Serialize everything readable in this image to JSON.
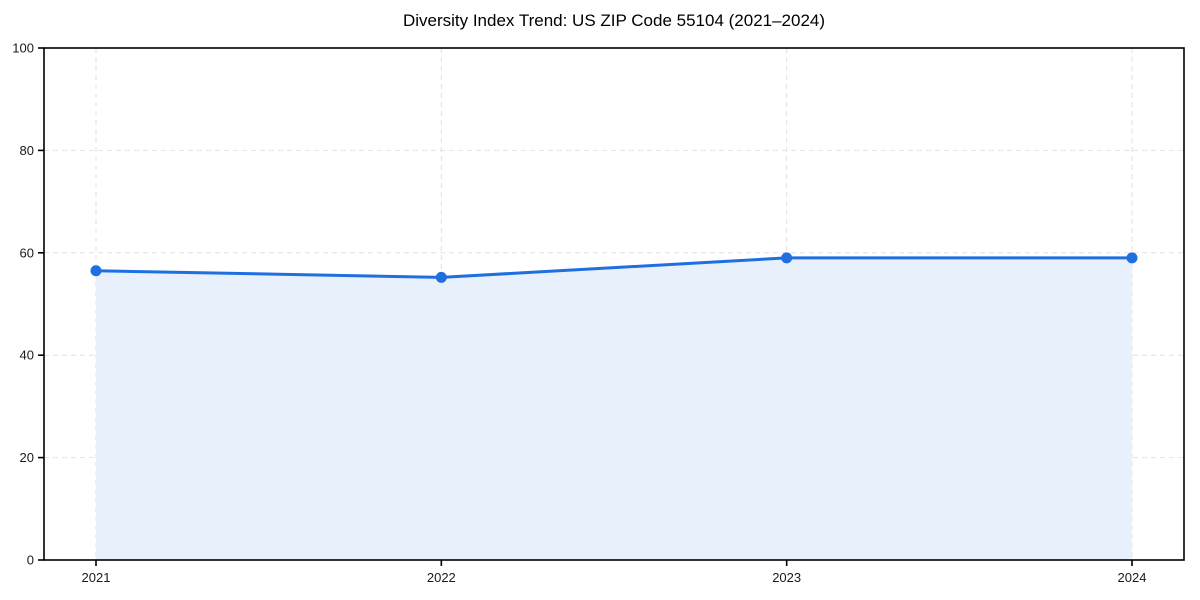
{
  "chart_data": {
    "type": "area",
    "title": "Diversity Index Trend: US ZIP Code 55104 (2021–2024)",
    "x": [
      2021,
      2022,
      2023,
      2024
    ],
    "xticks": [
      "2021",
      "2022",
      "2023",
      "2024"
    ],
    "series": [
      {
        "name": "Diversity Index",
        "values": [
          56.5,
          55.2,
          59.0,
          59.0
        ]
      }
    ],
    "xlabel": "",
    "ylabel": "",
    "ylim": [
      0,
      100
    ],
    "yticks": [
      0,
      20,
      40,
      60,
      80,
      100
    ],
    "grid": true,
    "grid_style": "dashed",
    "legend": false,
    "colors": {
      "line": "#1f6fe0",
      "marker": "#1f6fe0",
      "fill": "#e8f0fc",
      "grid": "#e2e2e2",
      "spine": "#000000",
      "tick_text": "#1a1a1a",
      "background": "#ffffff"
    }
  }
}
